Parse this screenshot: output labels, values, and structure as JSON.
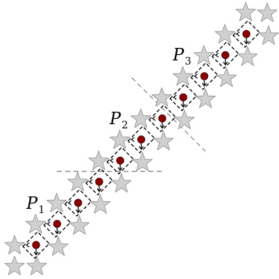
{
  "colors": {
    "background": "#ffffff",
    "star_fill": "#d0d0d0",
    "star_stroke": "#8a8a8a",
    "dot_fill": "#8b0000",
    "dot_stroke": "#3a0000",
    "line": "#000000",
    "guide": "#555555"
  },
  "icons": {
    "node": "star-icon",
    "center": "dot-icon"
  },
  "labels": [
    {
      "letter": "P",
      "sub": "1"
    },
    {
      "letter": "P",
      "sub": "2"
    },
    {
      "letter": "P",
      "sub": "3"
    }
  ],
  "structure": {
    "cells": 11,
    "groups": 3
  }
}
